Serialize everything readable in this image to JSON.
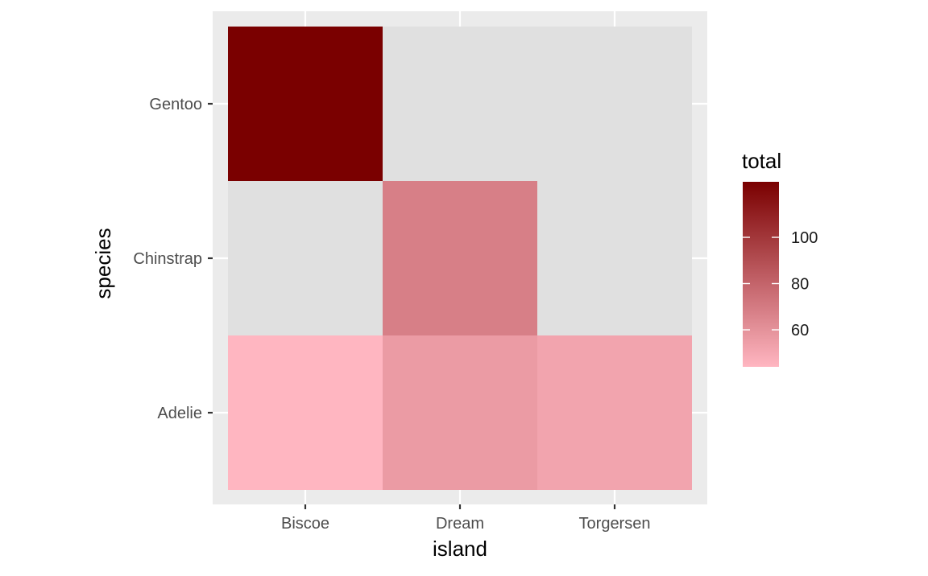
{
  "chart_data": {
    "type": "heatmap",
    "x_categories": [
      "Biscoe",
      "Dream",
      "Torgersen"
    ],
    "y_categories": [
      "Adelie",
      "Chinstrap",
      "Gentoo"
    ],
    "cells": [
      {
        "x": "Biscoe",
        "y": "Adelie",
        "value": 44
      },
      {
        "x": "Dream",
        "y": "Adelie",
        "value": 56
      },
      {
        "x": "Torgersen",
        "y": "Adelie",
        "value": 52
      },
      {
        "x": "Dream",
        "y": "Chinstrap",
        "value": 68
      },
      {
        "x": "Biscoe",
        "y": "Gentoo",
        "value": 124
      }
    ],
    "xlabel": "island",
    "ylabel": "species",
    "legend": {
      "title": "total",
      "ticks": [
        60,
        80,
        100
      ],
      "range": [
        44,
        124
      ],
      "low_color": "#FFB6C1",
      "high_color": "#7A0000",
      "position": "right"
    },
    "colors": {
      "panel_background": "#EBEBEB",
      "empty_cell": "#E0E0E0",
      "grid": "#FFFFFF"
    },
    "grid": true
  }
}
